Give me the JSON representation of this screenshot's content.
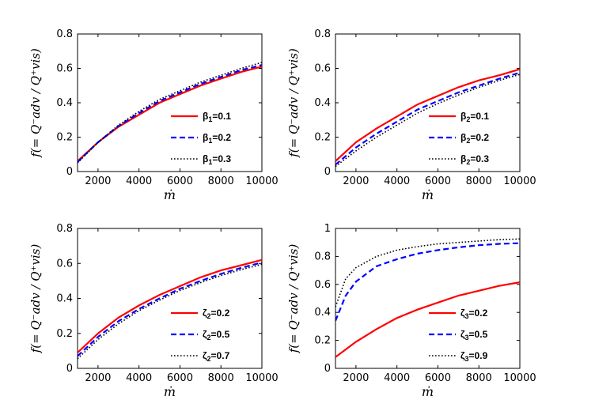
{
  "chart_data": [
    {
      "type": "line",
      "xlabel": "ṁ",
      "ylabel": "f(= Q⁻adv / Q⁺vis)",
      "xlim": [
        1000,
        10000
      ],
      "ylim": [
        0,
        0.8
      ],
      "xticks": [
        "2000",
        "4000",
        "6000",
        "8000",
        "10000"
      ],
      "yticks": [
        "0",
        "0.2",
        "0.4",
        "0.6",
        "0.8"
      ],
      "legend_position": "lower-right",
      "series": [
        {
          "name": "β",
          "sub": "1",
          "value": "=0.1",
          "style": "solid",
          "color": "#ff0000",
          "x": [
            1000,
            2000,
            3000,
            4000,
            5000,
            6000,
            7000,
            8000,
            9000,
            10000
          ],
          "y": [
            0.06,
            0.17,
            0.26,
            0.33,
            0.4,
            0.45,
            0.5,
            0.54,
            0.58,
            0.61
          ]
        },
        {
          "name": "β",
          "sub": "1",
          "value": "=0.2",
          "style": "dashed",
          "color": "#0000ff",
          "x": [
            1000,
            2000,
            3000,
            4000,
            5000,
            6000,
            7000,
            8000,
            9000,
            10000
          ],
          "y": [
            0.055,
            0.17,
            0.265,
            0.34,
            0.41,
            0.46,
            0.51,
            0.55,
            0.59,
            0.62
          ]
        },
        {
          "name": "β",
          "sub": "1",
          "value": "=0.3",
          "style": "dotted",
          "color": "#000000",
          "x": [
            1000,
            2000,
            3000,
            4000,
            5000,
            6000,
            7000,
            8000,
            9000,
            10000
          ],
          "y": [
            0.05,
            0.17,
            0.27,
            0.35,
            0.42,
            0.47,
            0.52,
            0.56,
            0.6,
            0.635
          ]
        }
      ]
    },
    {
      "type": "line",
      "xlabel": "ṁ",
      "ylabel": "f(= Q⁻adv / Q⁺vis)",
      "xlim": [
        1000,
        10000
      ],
      "ylim": [
        0,
        0.8
      ],
      "xticks": [
        "2000",
        "4000",
        "6000",
        "8000",
        "10000"
      ],
      "yticks": [
        "0",
        "0.2",
        "0.4",
        "0.6",
        "0.8"
      ],
      "legend_position": "lower-right",
      "series": [
        {
          "name": "β",
          "sub": "2",
          "value": "=0.1",
          "style": "solid",
          "color": "#ff0000",
          "x": [
            1000,
            2000,
            3000,
            4000,
            5000,
            6000,
            7000,
            8000,
            9000,
            10000
          ],
          "y": [
            0.06,
            0.17,
            0.25,
            0.32,
            0.39,
            0.44,
            0.49,
            0.53,
            0.56,
            0.595
          ]
        },
        {
          "name": "β",
          "sub": "2",
          "value": "=0.2",
          "style": "dashed",
          "color": "#0000ff",
          "x": [
            1000,
            2000,
            3000,
            4000,
            5000,
            6000,
            7000,
            8000,
            9000,
            10000
          ],
          "y": [
            0.04,
            0.14,
            0.22,
            0.29,
            0.36,
            0.41,
            0.46,
            0.5,
            0.54,
            0.575
          ]
        },
        {
          "name": "β",
          "sub": "2",
          "value": "=0.3",
          "style": "dotted",
          "color": "#000000",
          "x": [
            1000,
            2000,
            3000,
            4000,
            5000,
            6000,
            7000,
            8000,
            9000,
            10000
          ],
          "y": [
            0.03,
            0.12,
            0.2,
            0.27,
            0.34,
            0.395,
            0.445,
            0.49,
            0.53,
            0.565
          ]
        }
      ]
    },
    {
      "type": "line",
      "xlabel": "ṁ",
      "ylabel": "f(= Q⁻adv / Q⁺vis)",
      "xlim": [
        1000,
        10000
      ],
      "ylim": [
        0,
        0.8
      ],
      "xticks": [
        "2000",
        "4000",
        "6000",
        "8000",
        "10000"
      ],
      "yticks": [
        "0",
        "0.2",
        "0.4",
        "0.6",
        "0.8"
      ],
      "legend_position": "lower-right",
      "series": [
        {
          "name": "ζ",
          "sub": "2",
          "value": "=0.2",
          "style": "solid",
          "color": "#ff0000",
          "x": [
            1000,
            2000,
            3000,
            4000,
            5000,
            6000,
            7000,
            8000,
            9000,
            10000
          ],
          "y": [
            0.09,
            0.2,
            0.29,
            0.36,
            0.42,
            0.47,
            0.52,
            0.56,
            0.59,
            0.62
          ]
        },
        {
          "name": "ζ",
          "sub": "2",
          "value": "=0.5",
          "style": "dashed",
          "color": "#0000ff",
          "x": [
            1000,
            2000,
            3000,
            4000,
            5000,
            6000,
            7000,
            8000,
            9000,
            10000
          ],
          "y": [
            0.07,
            0.18,
            0.27,
            0.34,
            0.4,
            0.455,
            0.5,
            0.54,
            0.575,
            0.605
          ]
        },
        {
          "name": "ζ",
          "sub": "2",
          "value": "=0.7",
          "style": "dotted",
          "color": "#000000",
          "x": [
            1000,
            2000,
            3000,
            4000,
            5000,
            6000,
            7000,
            8000,
            9000,
            10000
          ],
          "y": [
            0.055,
            0.165,
            0.255,
            0.33,
            0.39,
            0.445,
            0.49,
            0.53,
            0.565,
            0.595
          ]
        }
      ]
    },
    {
      "type": "line",
      "xlabel": "ṁ",
      "ylabel": "f(= Q⁻adv / Q⁺vis)",
      "xlim": [
        1000,
        10000
      ],
      "ylim": [
        0,
        1
      ],
      "xticks": [
        "2000",
        "4000",
        "6000",
        "8000",
        "10000"
      ],
      "yticks": [
        "0",
        "0.2",
        "0.4",
        "0.6",
        "0.8",
        "1"
      ],
      "legend_position": "lower-right",
      "series": [
        {
          "name": "ζ",
          "sub": "3",
          "value": "=0.2",
          "style": "solid",
          "color": "#ff0000",
          "x": [
            1000,
            2000,
            3000,
            4000,
            5000,
            6000,
            7000,
            8000,
            9000,
            10000
          ],
          "y": [
            0.08,
            0.19,
            0.28,
            0.36,
            0.42,
            0.47,
            0.52,
            0.555,
            0.59,
            0.615
          ]
        },
        {
          "name": "ζ",
          "sub": "3",
          "value": "=0.5",
          "style": "dashed",
          "color": "#0000ff",
          "x": [
            1000,
            1500,
            2000,
            3000,
            4000,
            5000,
            6000,
            7000,
            8000,
            9000,
            10000
          ],
          "y": [
            0.34,
            0.52,
            0.62,
            0.73,
            0.78,
            0.82,
            0.845,
            0.865,
            0.88,
            0.89,
            0.895
          ]
        },
        {
          "name": "ζ",
          "sub": "3",
          "value": "=0.9",
          "style": "dotted",
          "color": "#000000",
          "x": [
            1000,
            1500,
            2000,
            3000,
            4000,
            5000,
            6000,
            7000,
            8000,
            9000,
            10000
          ],
          "y": [
            0.44,
            0.64,
            0.72,
            0.8,
            0.845,
            0.87,
            0.89,
            0.9,
            0.91,
            0.92,
            0.925
          ]
        }
      ]
    }
  ]
}
